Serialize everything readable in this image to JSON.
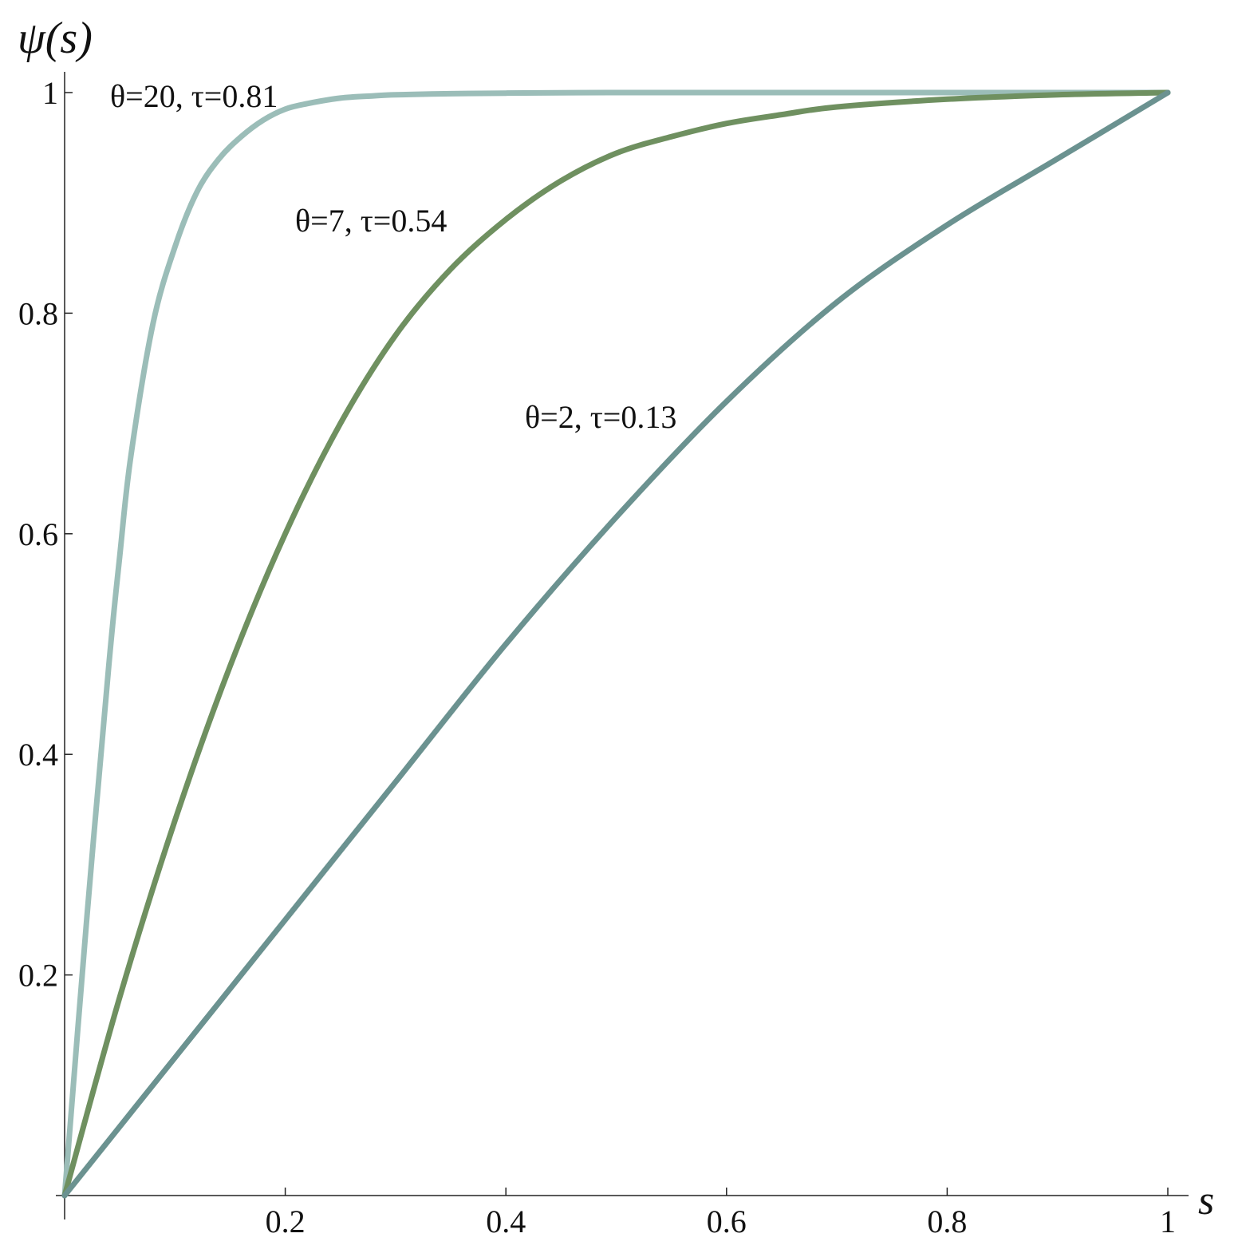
{
  "chart_data": {
    "type": "line",
    "title": "",
    "xlabel": "s",
    "ylabel": "ψ(s)",
    "xlim": [
      0,
      1
    ],
    "ylim": [
      0,
      1
    ],
    "grid": false,
    "x_ticks": [
      0.2,
      0.4,
      0.6,
      0.8,
      1
    ],
    "x_tick_labels": [
      "0.2",
      "0.4",
      "0.6",
      "0.8",
      "1"
    ],
    "y_ticks": [
      0.2,
      0.4,
      0.6,
      0.8,
      1
    ],
    "y_tick_labels": [
      "0.2",
      "0.4",
      "0.6",
      "0.8",
      "1"
    ],
    "series": [
      {
        "label": "θ=20, τ=0.81",
        "color": "#9bbdb8",
        "x": [
          0,
          0.02,
          0.04,
          0.05,
          0.06,
          0.08,
          0.1,
          0.12,
          0.14,
          0.16,
          0.18,
          0.2,
          0.22,
          0.25,
          0.28,
          0.3,
          0.35,
          0.4,
          0.5,
          0.6,
          0.8,
          1
        ],
        "y": [
          0,
          0.25,
          0.48,
          0.58,
          0.67,
          0.79,
          0.86,
          0.91,
          0.94,
          0.96,
          0.975,
          0.985,
          0.99,
          0.995,
          0.997,
          0.998,
          0.999,
          0.9995,
          1,
          1,
          1,
          1
        ]
      },
      {
        "label": "θ=7, τ=0.54",
        "color": "#6f9060",
        "x": [
          0,
          0.05,
          0.1,
          0.15,
          0.2,
          0.25,
          0.3,
          0.35,
          0.4,
          0.45,
          0.5,
          0.55,
          0.6,
          0.65,
          0.7,
          0.8,
          0.9,
          1
        ],
        "y": [
          0,
          0.18,
          0.34,
          0.48,
          0.6,
          0.7,
          0.78,
          0.84,
          0.885,
          0.92,
          0.945,
          0.96,
          0.972,
          0.98,
          0.987,
          0.994,
          0.998,
          1
        ]
      },
      {
        "label": "θ=2, τ=0.13",
        "color": "#6b9290",
        "x": [
          0,
          0.1,
          0.2,
          0.3,
          0.4,
          0.5,
          0.6,
          0.7,
          0.8,
          0.9,
          1
        ],
        "y": [
          0,
          0.125,
          0.25,
          0.375,
          0.5,
          0.615,
          0.72,
          0.81,
          0.88,
          0.94,
          1
        ]
      }
    ]
  }
}
